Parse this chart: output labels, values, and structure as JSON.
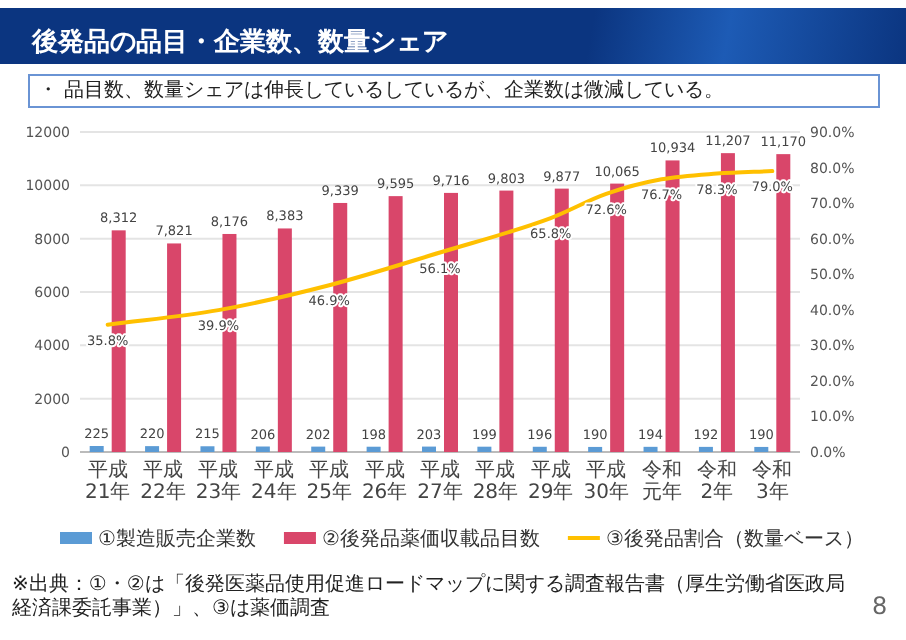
{
  "chart_data": {
    "type": "bar",
    "title": "後発品の品目・企業数、数量シェア",
    "subtitle": "・ 品目数、数量シェアは伸長しているしているが、企業数は微減している。",
    "categories": [
      "平成21年",
      "平成22年",
      "平成23年",
      "平成24年",
      "平成25年",
      "平成26年",
      "平成27年",
      "平成28年",
      "平成29年",
      "平成30年",
      "令和元年",
      "令和2年",
      "令和3年"
    ],
    "series": [
      {
        "name": "①製造販売企業数",
        "color": "#5b9bd5",
        "values": [
          225,
          220,
          215,
          206,
          202,
          198,
          203,
          199,
          196,
          190,
          194,
          192,
          190
        ],
        "value_labels": [
          "225",
          "220",
          "215",
          "206",
          "202",
          "198",
          "203",
          "199",
          "196",
          "190",
          "194",
          "192",
          "190"
        ]
      },
      {
        "name": "②後発品薬価収載品目数",
        "color": "#d9466a",
        "values": [
          8312,
          7821,
          8176,
          8383,
          9339,
          9595,
          9716,
          9803,
          9877,
          10065,
          10934,
          11207,
          11170
        ],
        "value_labels": [
          "8,312",
          "7,821",
          "8,176",
          "8,383",
          "9,339",
          "9,595",
          "9,716",
          "9,803",
          "9,877",
          "10,065",
          "10,934",
          "11,207",
          "11,170"
        ]
      },
      {
        "name": "③後発品割合（数量ベース）",
        "color": "#ffc000",
        "type": "line",
        "axis": "y2",
        "values": [
          35.8,
          null,
          39.9,
          null,
          46.9,
          null,
          56.1,
          null,
          65.8,
          72.6,
          76.7,
          78.3,
          79.0
        ],
        "value_labels": [
          "35.8%",
          null,
          "39.9%",
          null,
          "46.9%",
          null,
          "56.1%",
          null,
          "65.8%",
          "72.6%",
          "76.7%",
          "78.3%",
          "79.0%"
        ]
      }
    ],
    "ylim": [
      0,
      12000
    ],
    "yticks": [
      0,
      2000,
      4000,
      6000,
      8000,
      10000,
      12000
    ],
    "y2lim": [
      0,
      90
    ],
    "y2ticks": [
      {
        "value": 0,
        "label": "0.0%"
      },
      {
        "value": 10,
        "label": "10.0%"
      },
      {
        "value": 20,
        "label": "20.0%"
      },
      {
        "value": 30,
        "label": "30.0%"
      },
      {
        "value": 40,
        "label": "40.0%"
      },
      {
        "value": 50,
        "label": "50.0%"
      },
      {
        "value": 60,
        "label": "60.0%"
      },
      {
        "value": 70,
        "label": "70.0%"
      },
      {
        "value": 80,
        "label": "80.0%"
      },
      {
        "value": 90,
        "label": "90.0%"
      }
    ],
    "grid": "y",
    "legend": "bottom",
    "marker": "none",
    "annotations": [
      "※出典：①・②は「後発医薬品使用促進ロードマップに関する調査報告書（厚生労働省医政局経済課委託事業）」、③は薬価調査",
      "8"
    ]
  }
}
